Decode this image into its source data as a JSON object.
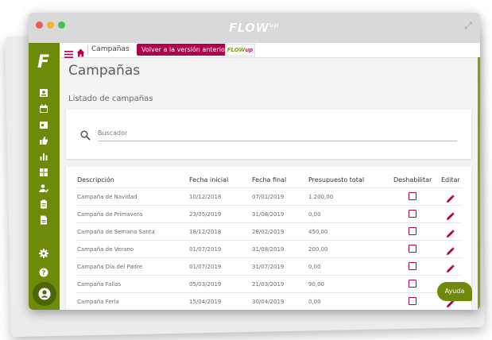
{
  "window": {
    "brand": "FLOW",
    "brand_suffix": "up"
  },
  "sidebar": {
    "logo": "F",
    "items": [
      {
        "icon": "contact-card-icon"
      },
      {
        "icon": "calendar-icon"
      },
      {
        "icon": "calendar-event-icon"
      },
      {
        "icon": "thumbs-up-icon"
      },
      {
        "icon": "bar-chart-icon"
      },
      {
        "icon": "dashboard-icon"
      },
      {
        "icon": "user-check-icon"
      },
      {
        "icon": "clipboard-icon"
      },
      {
        "icon": "document-icon"
      }
    ],
    "bottom": [
      {
        "icon": "gear-icon"
      },
      {
        "icon": "help-icon"
      },
      {
        "icon": "avatar-icon"
      }
    ]
  },
  "topbar": {
    "breadcrumb": "Campañas",
    "back_button": "Volver a la versión anterior",
    "mini_logo_left": "FLOW",
    "mini_logo_right": "up"
  },
  "page": {
    "title": "Campañas",
    "subtitle": "Listado de campañas"
  },
  "search": {
    "placeholder": "Buscador"
  },
  "table": {
    "headers": {
      "description": "Descripción",
      "start": "Fecha inicial",
      "end": "Fecha final",
      "budget": "Presupuesto total",
      "disable": "Deshabilitar",
      "edit": "Editar"
    },
    "rows": [
      {
        "description": "Campaña de Navidad",
        "start": "10/12/2018",
        "end": "07/01/2019",
        "budget": "1.200,00"
      },
      {
        "description": "Campaña de Primavera",
        "start": "23/05/2019",
        "end": "31/08/2019",
        "budget": "0,00"
      },
      {
        "description": "Campaña de Semana Santa",
        "start": "18/12/2018",
        "end": "28/02/2019",
        "budget": "450,00"
      },
      {
        "description": "Campaña de Verano",
        "start": "01/07/2019",
        "end": "31/08/2019",
        "budget": "200,00"
      },
      {
        "description": "Campaña Día del Padre",
        "start": "01/07/2019",
        "end": "31/07/2019",
        "budget": "0,00"
      },
      {
        "description": "Campaña Fallas",
        "start": "05/03/2019",
        "end": "21/03/2019",
        "budget": "90,00"
      },
      {
        "description": "Campaña Feria",
        "start": "15/04/2019",
        "end": "30/04/2019",
        "budget": "0,00"
      }
    ]
  },
  "help": {
    "label": "Ayuda"
  },
  "colors": {
    "sidebar": "#6e8a0a",
    "accent": "#b3004e",
    "background": "#f3f3f3"
  }
}
